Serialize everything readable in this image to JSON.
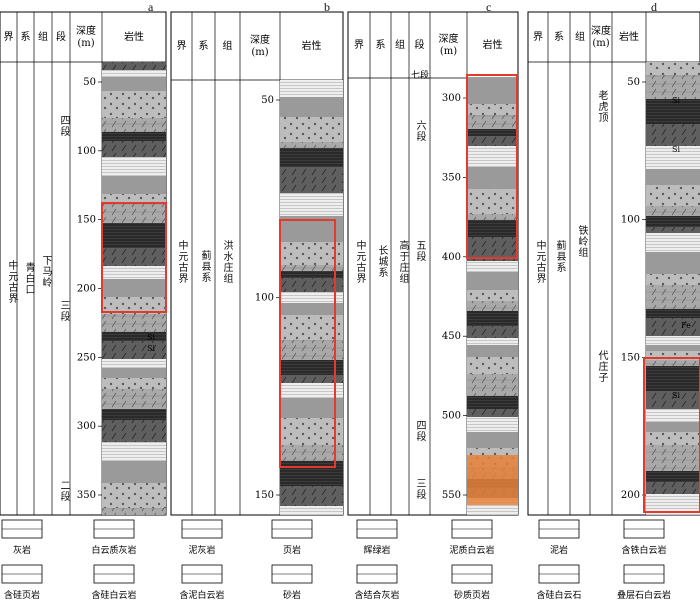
{
  "panels": [
    {
      "id": "a",
      "letter": "a",
      "headers": [
        "界",
        "系",
        "组",
        "段",
        "深度\n(m)",
        "岩性"
      ],
      "units": {
        "era": "中元古界",
        "system": "青白口",
        "formation": "下马岭",
        "members": [
          "四段",
          "三段",
          "二段"
        ]
      },
      "ticks": [
        "50",
        "100",
        "150",
        "200",
        "250",
        "300",
        "350"
      ]
    },
    {
      "id": "b",
      "letter": "b",
      "headers": [
        "界",
        "系",
        "组",
        "深度\n(m)",
        "岩性"
      ],
      "units": {
        "era": "中元古界",
        "system": "蓟县系",
        "formation": "洪水庄组"
      },
      "ticks": [
        "50",
        "100",
        "150"
      ]
    },
    {
      "id": "c",
      "letter": "c",
      "headers": [
        "界",
        "系",
        "组",
        "段",
        "深度\n(m)",
        "岩性"
      ],
      "units": {
        "era": "中元古界",
        "system": "长城系",
        "formation": "高于庄组",
        "members": [
          "七段",
          "六段",
          "五段",
          "四段",
          "三段"
        ]
      },
      "ticks": [
        "300",
        "350",
        "400",
        "450",
        "500",
        "550"
      ]
    },
    {
      "id": "d",
      "letter": "d",
      "headers": [
        "界",
        "系",
        "组",
        "深度\n(m)",
        "岩性"
      ],
      "units": {
        "era": "中元古界",
        "system": "蓟县系",
        "formation": "铁岭组",
        "members": [
          "老虎顶",
          "代庄子"
        ]
      },
      "ticks": [
        "50",
        "100",
        "150",
        "200"
      ]
    }
  ],
  "legend": [
    {
      "name": "灰岩"
    },
    {
      "name": "白云质灰岩"
    },
    {
      "name": "泥灰岩"
    },
    {
      "name": "页岩"
    },
    {
      "name": "辉绿岩"
    },
    {
      "name": "泥质白云岩"
    },
    {
      "name": "泥岩"
    },
    {
      "name": "含铁白云岩"
    },
    {
      "name": "含硅页岩"
    },
    {
      "name": "含硅白云岩"
    },
    {
      "name": "含泥白云岩"
    },
    {
      "name": "砂岩"
    },
    {
      "name": "含结合灰岩"
    },
    {
      "name": "砂质页岩"
    },
    {
      "name": "含硅白云石"
    },
    {
      "name": "叠层石白云岩"
    }
  ],
  "symbols": {
    "si": "Si",
    "fe": "Fe"
  },
  "colors": {
    "highlight": "#e23a2e",
    "dark": "#222",
    "mid": "#888",
    "light": "#c8c8c8",
    "orange": "#e8813a"
  }
}
